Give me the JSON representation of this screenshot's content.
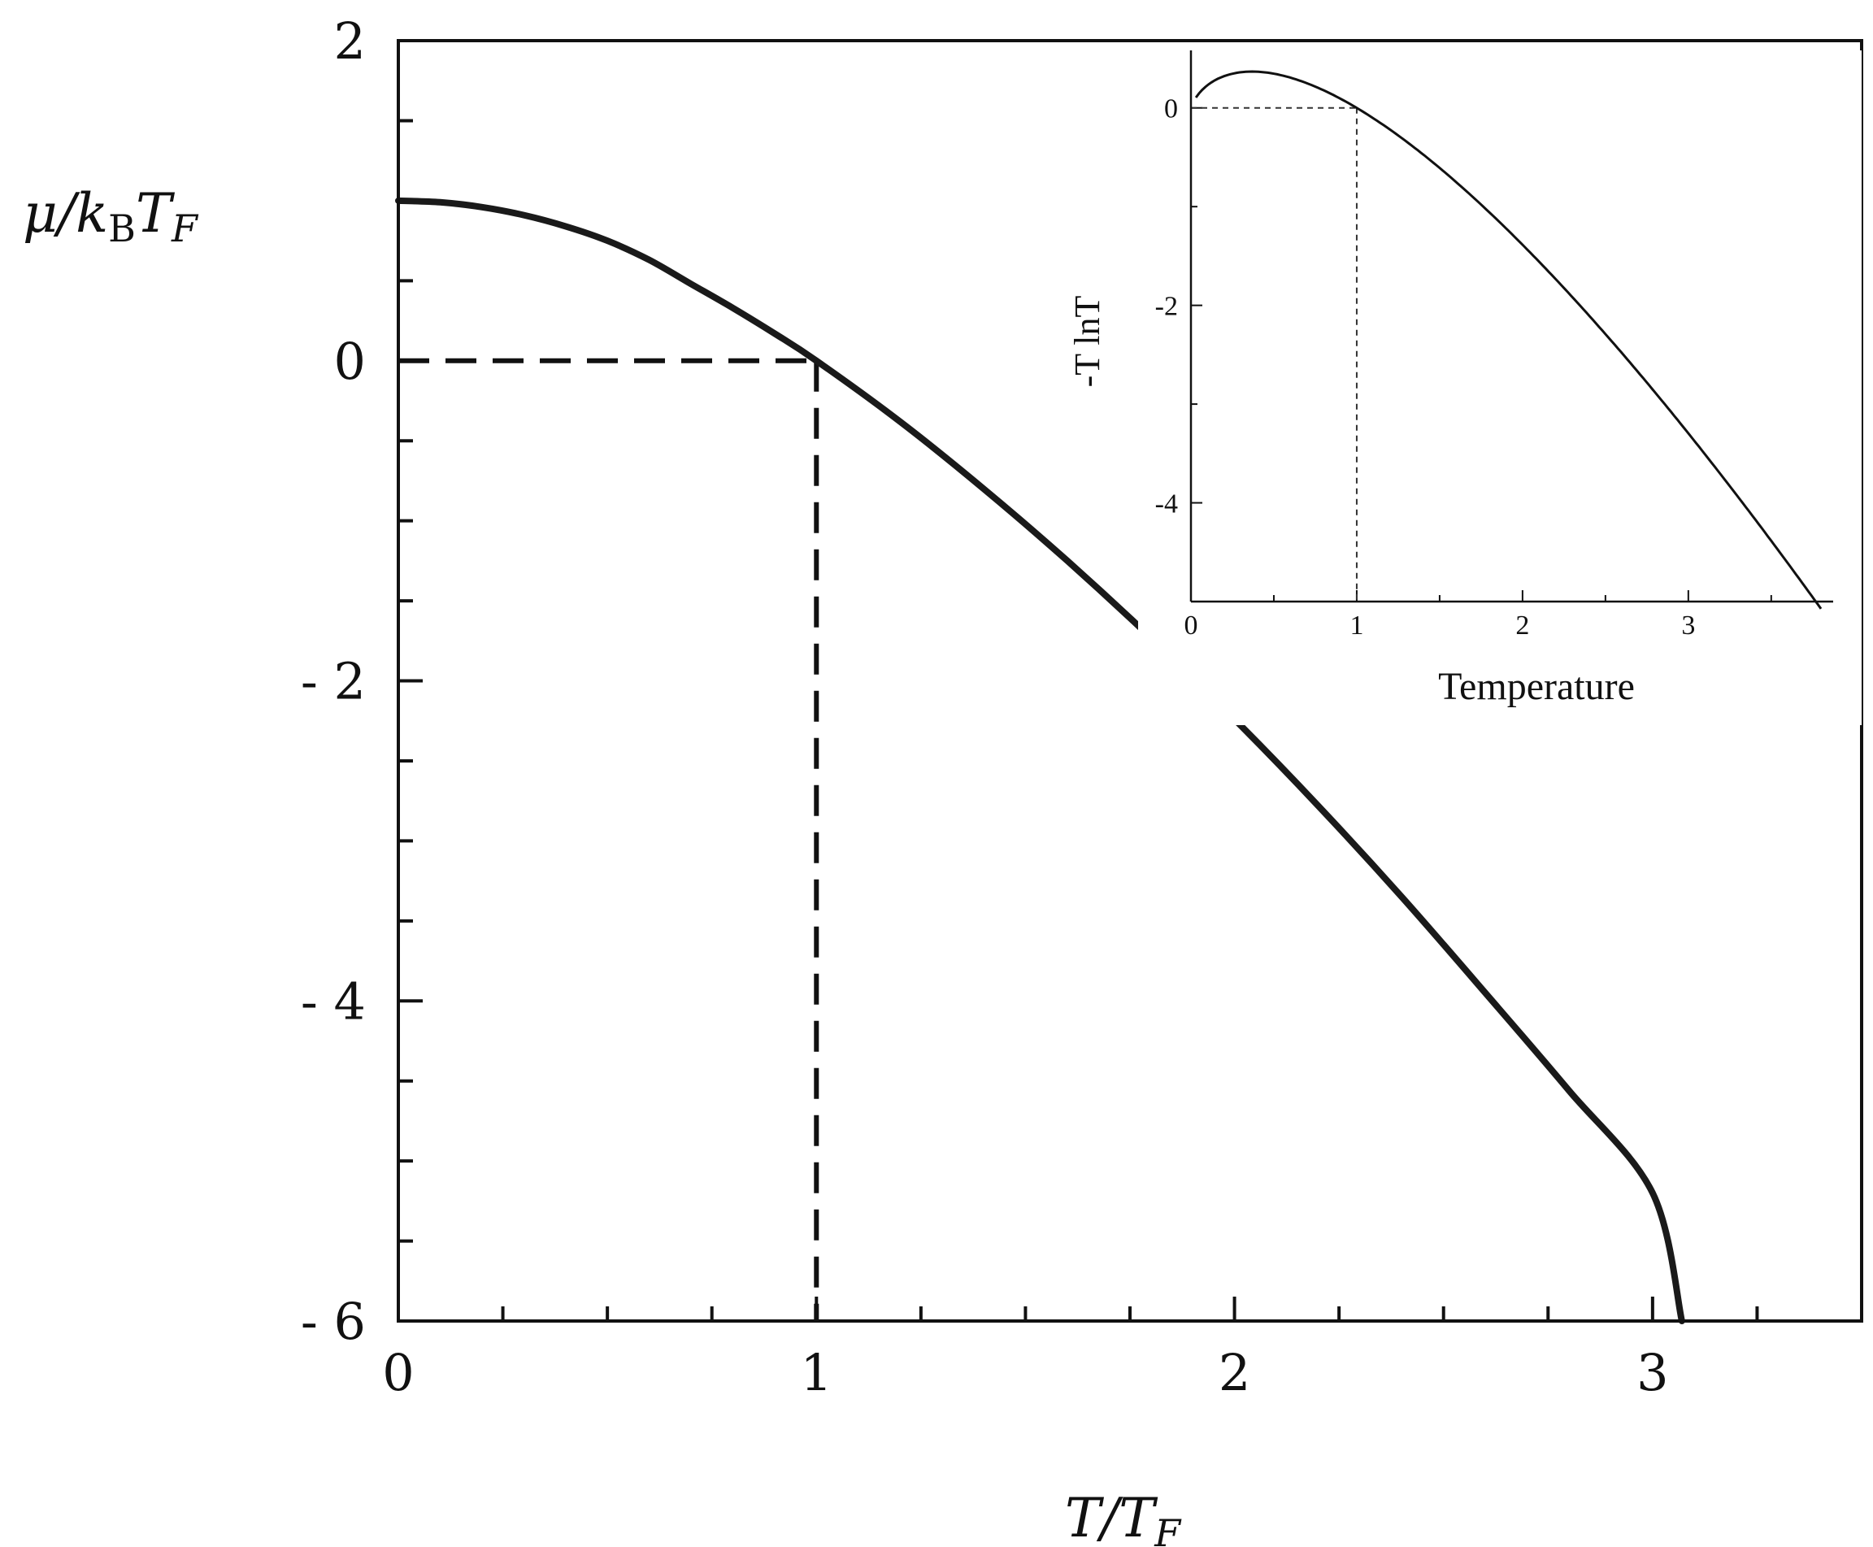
{
  "chart_data": [
    {
      "type": "line",
      "role": "main",
      "title": "",
      "xlabel": {
        "base": "T/T",
        "sub": "F"
      },
      "ylabel": {
        "base": "μ/k",
        "sub1": "B",
        "mid": "T",
        "sub2": "F"
      },
      "xlim": [
        0,
        3.5
      ],
      "ylim": [
        -6,
        2
      ],
      "x_ticks": [
        {
          "value": 0,
          "label": "0"
        },
        {
          "value": 1,
          "label": "1"
        },
        {
          "value": 2,
          "label": "2"
        },
        {
          "value": 3,
          "label": "3"
        }
      ],
      "y_ticks": [
        {
          "value": 2,
          "label": "2"
        },
        {
          "value": 0,
          "label": "0"
        },
        {
          "value": -2,
          "label": "- 2"
        },
        {
          "value": -4,
          "label": "- 4"
        },
        {
          "value": -6,
          "label": "- 6"
        }
      ],
      "x_minor_step": 0.25,
      "y_minor_step": 0.5,
      "grid": false,
      "series": [
        {
          "x": [
            0,
            0.1,
            0.2,
            0.3,
            0.4,
            0.5,
            0.6,
            0.7,
            0.8,
            0.9,
            1.0,
            1.2,
            1.4,
            1.6,
            1.8,
            2.0,
            2.2,
            2.4,
            2.6,
            2.8,
            3.0,
            3.07
          ],
          "y": [
            1.0,
            0.99,
            0.96,
            0.91,
            0.84,
            0.75,
            0.63,
            0.48,
            0.33,
            0.17,
            0.0,
            -0.38,
            -0.8,
            -1.25,
            -1.73,
            -2.24,
            -2.78,
            -3.35,
            -3.95,
            -4.56,
            -5.2,
            -6.0
          ]
        }
      ],
      "reference_lines": [
        {
          "style": "dashed",
          "from": [
            0,
            0
          ],
          "to": [
            1,
            0
          ]
        },
        {
          "style": "dashed",
          "from": [
            1,
            0
          ],
          "to": [
            1,
            -6
          ]
        }
      ]
    },
    {
      "type": "line",
      "role": "inset",
      "title": "",
      "xlabel": "Temperature",
      "ylabel": "-T lnT",
      "xlim": [
        0,
        3.8
      ],
      "ylim": [
        -5,
        0.5
      ],
      "x_ticks": [
        {
          "value": 0,
          "label": "0"
        },
        {
          "value": 1,
          "label": "1"
        },
        {
          "value": 2,
          "label": "2"
        },
        {
          "value": 3,
          "label": "3"
        }
      ],
      "y_ticks": [
        {
          "value": 0,
          "label": "0"
        },
        {
          "value": -2,
          "label": "-2"
        },
        {
          "value": -4,
          "label": "-4"
        }
      ],
      "x_minor_step": 0.5,
      "y_minor_step": 1,
      "grid": false,
      "series": [
        {
          "function": "-x*ln(x)",
          "x_range": [
            0.03,
            3.8
          ]
        }
      ],
      "reference_lines": [
        {
          "style": "dotted",
          "from": [
            0,
            0
          ],
          "to": [
            1,
            0
          ]
        },
        {
          "style": "dotted",
          "from": [
            1,
            0
          ],
          "to": [
            1,
            -5
          ]
        }
      ]
    }
  ]
}
